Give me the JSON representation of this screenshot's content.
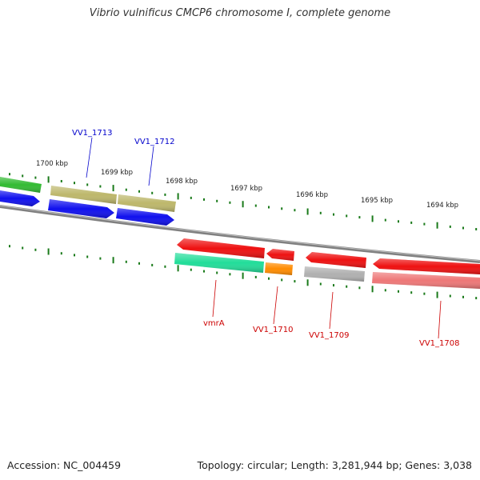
{
  "title": "Vibrio vulnificus CMCP6 chromosome I, complete genome",
  "footer": {
    "accession": "Accession: NC_004459",
    "summary": "Topology: circular; Length: 3,281,944 bp; Genes: 3,038"
  },
  "kbp_labels": [
    "1700 kbp",
    "1699 kbp",
    "1698 kbp",
    "1697 kbp",
    "1696 kbp",
    "1695 kbp",
    "1694 kbp"
  ],
  "genes": [
    {
      "name": "VV1_1713",
      "strand": "+",
      "color": "#0000cc"
    },
    {
      "name": "VV1_1712",
      "strand": "+",
      "color": "#0000cc"
    },
    {
      "name": "vmrA",
      "strand": "-",
      "color": "#cc0000"
    },
    {
      "name": "VV1_1710",
      "strand": "-",
      "color": "#cc0000"
    },
    {
      "name": "VV1_1709",
      "strand": "-",
      "color": "#cc0000"
    },
    {
      "name": "VV1_1708",
      "strand": "-",
      "color": "#cc0000"
    }
  ],
  "colors": {
    "backbone": "#808080",
    "tick": "#1a7a1a",
    "cds_blue": "#1010ee",
    "cds_green": "#33bb33",
    "cds_olive": "#bdb76b",
    "cds_red": "#ee1111",
    "cds_teal": "#22dd99",
    "cds_orange": "#ff8c00",
    "cds_gray": "#b0b0b0",
    "cds_pink": "#ee7777"
  }
}
